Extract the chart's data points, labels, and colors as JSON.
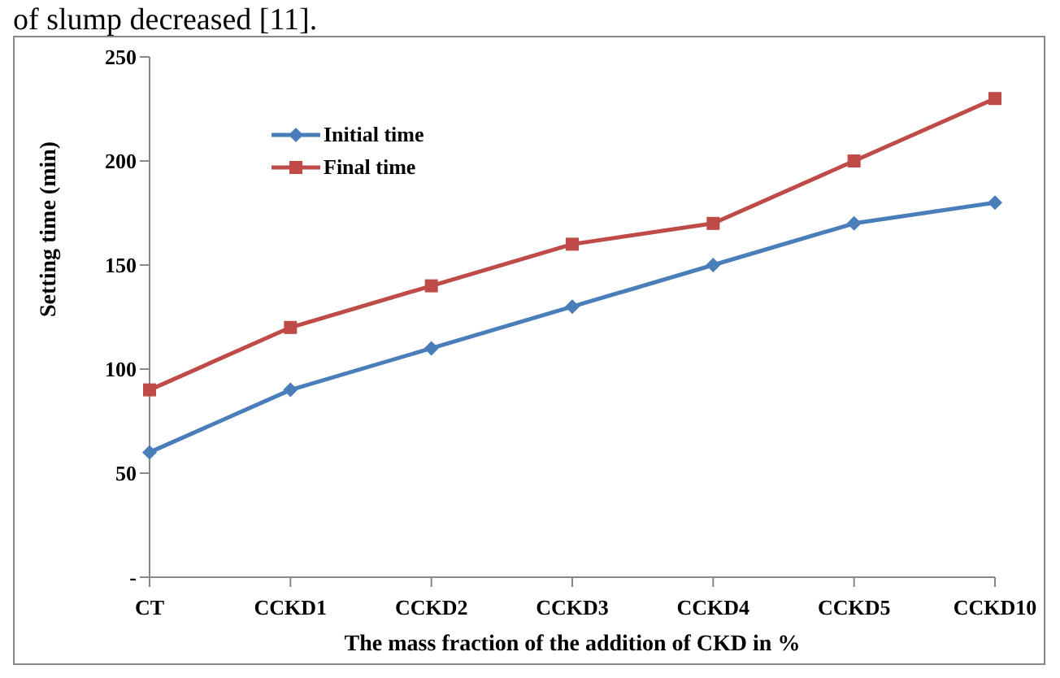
{
  "chart_data": {
    "type": "line",
    "xlabel": "The mass fraction of the addition of CKD in %",
    "ylabel": "Setting time (min)",
    "annotations": [
      "of slump decreased [11]."
    ],
    "categories": [
      "CT",
      "CCKD1",
      "CCKD2",
      "CCKD3",
      "CCKD4",
      "CCKD5",
      "CCKD10"
    ],
    "series": [
      {
        "name": "Initial time",
        "color": "#4a7ebb",
        "marker": "diamond",
        "values": [
          60,
          90,
          110,
          130,
          150,
          170,
          180
        ]
      },
      {
        "name": "Final time",
        "color": "#be4b48",
        "marker": "square",
        "values": [
          90,
          120,
          140,
          160,
          170,
          200,
          230
        ]
      }
    ],
    "ylim": [
      0,
      250
    ],
    "yticks": [
      {
        "value": 0,
        "label": "-"
      },
      50,
      100,
      150,
      200,
      250
    ],
    "grid": false,
    "legend": "top left",
    "line_style": "solid"
  }
}
